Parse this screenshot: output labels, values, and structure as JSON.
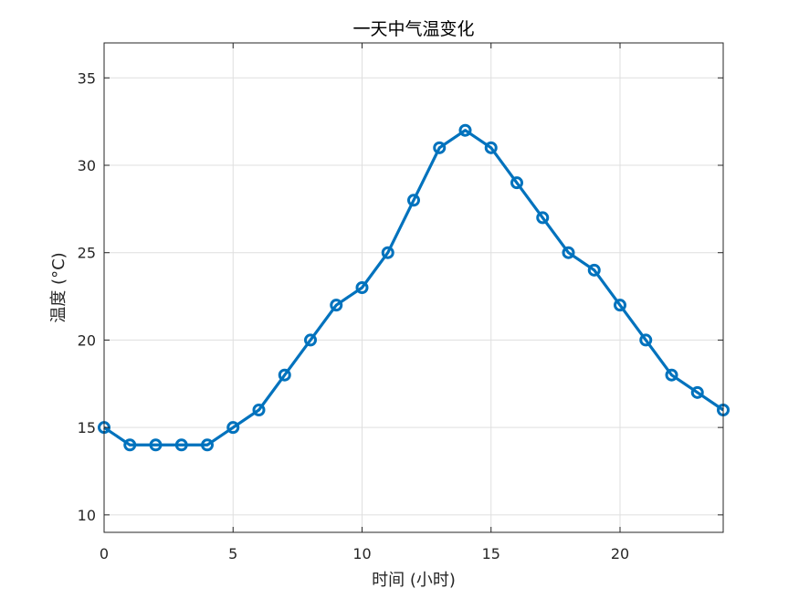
{
  "chart_data": {
    "type": "line",
    "title": "一天中气温变化",
    "xlabel": "时间 (小时)",
    "ylabel": "温度 (°C)",
    "xlim": [
      0,
      24
    ],
    "ylim": [
      9,
      37
    ],
    "xticks": [
      0,
      5,
      10,
      15,
      20
    ],
    "yticks": [
      10,
      15,
      20,
      25,
      30,
      35
    ],
    "grid": true,
    "legend": "none",
    "series": [
      {
        "color": "#0072BD",
        "marker": "circle",
        "x": [
          0,
          1,
          2,
          3,
          4,
          5,
          6,
          7,
          8,
          9,
          10,
          11,
          12,
          13,
          14,
          15,
          16,
          17,
          18,
          19,
          20,
          21,
          22,
          23,
          24
        ],
        "y": [
          15,
          14,
          14,
          14,
          14,
          15,
          16,
          18,
          20,
          22,
          23,
          25,
          28,
          31,
          32,
          31,
          29,
          27,
          25,
          24,
          22,
          20,
          18,
          17,
          16
        ]
      }
    ]
  }
}
